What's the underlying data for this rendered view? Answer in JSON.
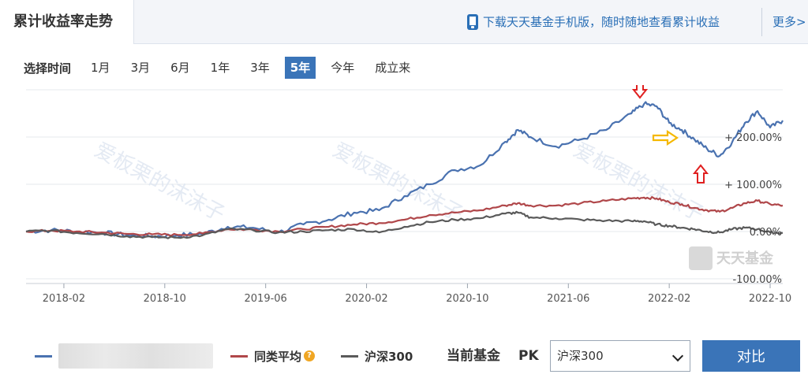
{
  "header": {
    "tab_label": "累计收益率走势",
    "promo_text": "下载天天基金手机版，随时随地查看累计收益",
    "more_label": "更多>"
  },
  "time_selector": {
    "label": "选择时间",
    "options": [
      "1月",
      "3月",
      "6月",
      "1年",
      "3年",
      "5年",
      "今年",
      "成立来"
    ],
    "active": "5年"
  },
  "watermarks": [
    "爱板栗的沫沫子",
    "爱板栗的沫沫子",
    "爱板栗的沫沫子"
  ],
  "brand_logo": "天天基金",
  "colors": {
    "fund": "#4a72b0",
    "category_avg": "#b0474a",
    "hs300": "#5a5a5a",
    "accent": "#3a74b8",
    "arrow_red": "#e02020",
    "arrow_yellow": "#f5b800"
  },
  "chart_data": {
    "type": "line",
    "title": "累计收益率走势",
    "x_ticks": [
      "2018-02",
      "2018-10",
      "2019-06",
      "2020-02",
      "2020-10",
      "2021-06",
      "2022-02",
      "2022-10"
    ],
    "y_ticks": [
      "-100.00%",
      "0.00%",
      "+ 100.00%",
      "+ 200.00%"
    ],
    "ylim": [
      -100,
      300
    ],
    "y_unit": "%",
    "grid": true,
    "x": [
      "2017-11",
      "2018-01",
      "2018-03",
      "2018-05",
      "2018-07",
      "2018-09",
      "2018-11",
      "2019-01",
      "2019-03",
      "2019-05",
      "2019-07",
      "2019-09",
      "2019-11",
      "2020-01",
      "2020-03",
      "2020-05",
      "2020-07",
      "2020-09",
      "2020-11",
      "2021-01",
      "2021-02",
      "2021-03",
      "2021-05",
      "2021-07",
      "2021-09",
      "2021-11",
      "2021-12",
      "2022-01",
      "2022-02",
      "2022-03",
      "2022-04",
      "2022-05",
      "2022-06",
      "2022-07",
      "2022-08",
      "2022-09",
      "2022-10",
      "2022-11"
    ],
    "series": [
      {
        "name": "",
        "values": [
          0,
          3,
          0,
          -2,
          -8,
          -10,
          -8,
          -5,
          10,
          8,
          -2,
          15,
          25,
          40,
          45,
          75,
          100,
          130,
          140,
          190,
          215,
          200,
          180,
          195,
          215,
          250,
          270,
          265,
          230,
          215,
          195,
          175,
          160,
          190,
          230,
          255,
          220,
          235
        ]
      },
      {
        "name": "同类平均",
        "values": [
          0,
          2,
          0,
          -2,
          -5,
          -6,
          -7,
          -4,
          5,
          4,
          0,
          5,
          10,
          15,
          18,
          25,
          35,
          40,
          45,
          55,
          60,
          55,
          55,
          60,
          65,
          70,
          72,
          70,
          62,
          58,
          50,
          45,
          42,
          50,
          60,
          65,
          58,
          55
        ]
      },
      {
        "name": "沪深300",
        "values": [
          0,
          2,
          -3,
          -5,
          -10,
          -12,
          -13,
          -8,
          5,
          3,
          -2,
          0,
          3,
          5,
          -2,
          10,
          20,
          25,
          28,
          38,
          40,
          30,
          28,
          25,
          23,
          22,
          22,
          15,
          12,
          8,
          5,
          0,
          -2,
          5,
          8,
          5,
          -2,
          -3
        ]
      }
    ],
    "annotations": [
      {
        "type": "arrow",
        "color": "red",
        "direction": "down",
        "at": "2021-12"
      },
      {
        "type": "arrow",
        "color": "yellow",
        "direction": "right",
        "at": "2022-01"
      },
      {
        "type": "arrow",
        "color": "red",
        "direction": "up",
        "at": "2022-05"
      }
    ]
  },
  "legend": {
    "fund_name": "",
    "category_avg": "同类平均",
    "hs300": "沪深300",
    "current_fund_label": "当前基金",
    "pk_label": "PK",
    "compare_select_value": "沪深300",
    "compare_button": "对比"
  }
}
